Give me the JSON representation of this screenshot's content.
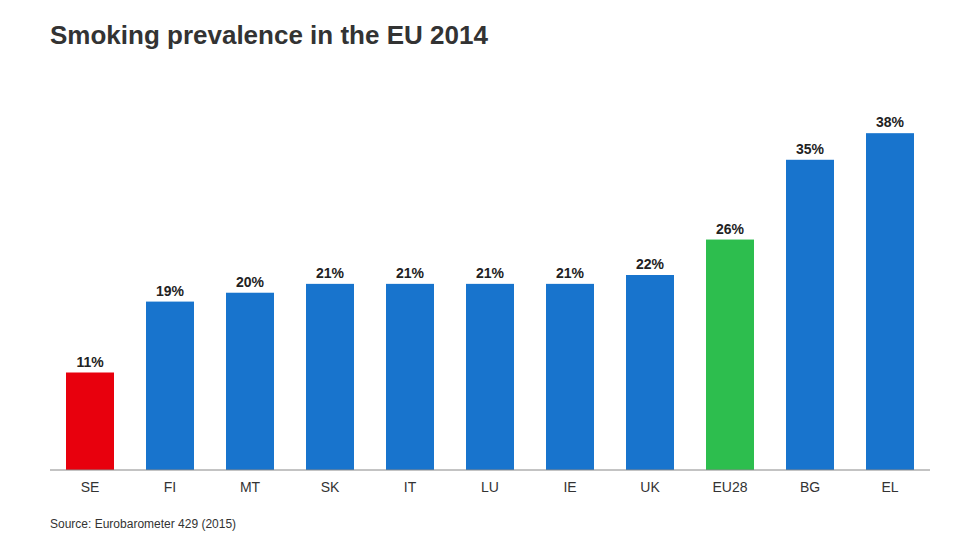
{
  "chart_data": {
    "type": "bar",
    "title": "Smoking prevalence in the EU 2014",
    "categories": [
      "SE",
      "FI",
      "MT",
      "SK",
      "IT",
      "LU",
      "IE",
      "UK",
      "EU28",
      "BG",
      "EL"
    ],
    "values": [
      11,
      19,
      20,
      21,
      21,
      21,
      21,
      22,
      26,
      35,
      38
    ],
    "value_labels": [
      "11%",
      "19%",
      "20%",
      "21%",
      "21%",
      "21%",
      "21%",
      "22%",
      "26%",
      "35%",
      "38%"
    ],
    "colors": [
      "#e8000d",
      "#1874cd",
      "#1874cd",
      "#1874cd",
      "#1874cd",
      "#1874cd",
      "#1874cd",
      "#1874cd",
      "#2dbe4e",
      "#1874cd",
      "#1874cd"
    ],
    "ylim": [
      0,
      44
    ],
    "grid": false,
    "data_labels": true,
    "tick_labels": "x",
    "annotations": [
      "Source: Eurobarometer 429 (2015)"
    ]
  }
}
